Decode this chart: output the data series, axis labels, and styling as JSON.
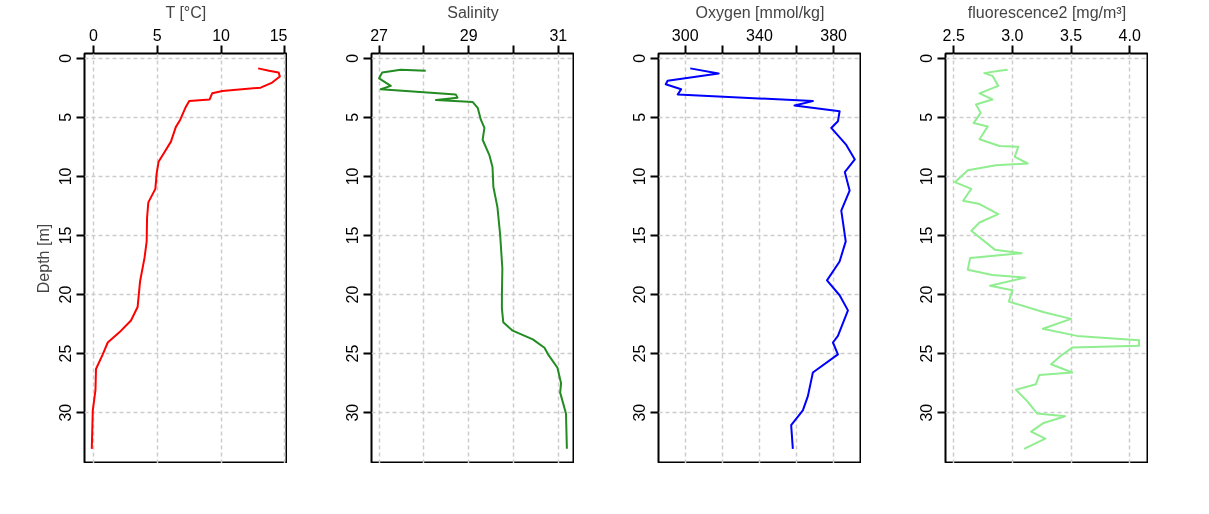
{
  "chart_data": [
    {
      "type": "line",
      "title": "T [°C]",
      "ylabel": "Depth [m]",
      "grid": true,
      "xlim": [
        -0.7,
        15.2
      ],
      "ylim": [
        34.3,
        -0.4
      ],
      "xticks": [
        0,
        5,
        10,
        15
      ],
      "yticks": [
        0,
        5,
        10,
        15,
        20,
        25,
        30
      ],
      "series": [
        {
          "color": "#ff0000",
          "x": [
            12.9,
            13.75,
            14.5,
            14.6,
            14.0,
            13.1,
            10.1,
            9.3,
            9.1,
            7.5,
            7.2,
            6.8,
            6.45,
            6.07,
            5.5,
            5.1,
            4.95,
            4.85,
            4.3,
            4.2,
            4.17,
            4.0,
            3.65,
            3.46,
            2.94,
            2.03,
            1.12,
            0.73,
            0.2,
            0.16,
            -0.05,
            -0.13
          ],
          "values": [
            0.86,
            1.06,
            1.2,
            1.54,
            2.06,
            2.49,
            2.77,
            2.97,
            3.49,
            3.63,
            4.2,
            5.2,
            5.83,
            7.06,
            8.06,
            8.77,
            9.77,
            11.06,
            12.2,
            13.5,
            15.5,
            16.9,
            18.9,
            21.06,
            22.2,
            23.2,
            24.06,
            25.06,
            26.3,
            28.06,
            29.8,
            33.06
          ]
        }
      ]
    },
    {
      "type": "line",
      "title": "Salinity",
      "grid": true,
      "xlim": [
        26.83,
        31.36
      ],
      "ylim": [
        34.3,
        -0.4
      ],
      "xticks": [
        27,
        {
          "value": 28,
          "label": null
        },
        29,
        {
          "value": 30,
          "label": null
        },
        31
      ],
      "yticks": [
        0,
        5,
        10,
        15,
        20,
        25,
        30
      ],
      "series": [
        {
          "color": "#228b22",
          "x": [
            28.04,
            27.48,
            27.07,
            27.0,
            27.26,
            27.04,
            28.71,
            28.75,
            28.27,
            29.09,
            29.2,
            29.27,
            29.35,
            29.31,
            29.46,
            29.53,
            29.55,
            29.64,
            29.7,
            29.75,
            29.74,
            29.74,
            29.77,
            29.98,
            30.43,
            30.69,
            30.77,
            30.98,
            31.06,
            31.04,
            31.17,
            31.19
          ],
          "values": [
            1.06,
            0.97,
            1.2,
            1.7,
            2.34,
            2.63,
            3.06,
            3.34,
            3.54,
            3.71,
            4.2,
            5.2,
            5.9,
            6.9,
            8.2,
            9.2,
            10.9,
            12.6,
            14.9,
            17.8,
            20.06,
            21.2,
            22.34,
            23.06,
            23.8,
            24.5,
            25.06,
            26.2,
            27.5,
            28.3,
            30.06,
            33.06
          ]
        }
      ]
    },
    {
      "type": "line",
      "title": "Oxygen [mmol/kg]",
      "grid": true,
      "xlim": [
        285.6,
        395
      ],
      "ylim": [
        34.3,
        -0.4
      ],
      "xticks": [
        300,
        {
          "value": 320,
          "label": null
        },
        340,
        {
          "value": 360,
          "label": null
        },
        380
      ],
      "yticks": [
        0,
        5,
        10,
        15,
        20,
        25,
        30
      ],
      "series": [
        {
          "color": "#0000ff",
          "x": [
            302.7,
            318,
            290.5,
            289.5,
            297.8,
            296,
            368.8,
            358.9,
            383.2,
            382.3,
            378.7,
            386.8,
            391.4,
            386,
            388.6,
            384.1,
            386.5,
            383.2,
            376.4,
            383.2,
            387.7,
            382.3,
            379.6,
            382.3,
            368.8,
            366.1,
            363.4,
            357.1,
            358
          ],
          "values": [
            0.86,
            1.29,
            1.91,
            2.2,
            2.63,
            3.06,
            3.63,
            4.0,
            4.49,
            5.34,
            5.9,
            7.34,
            8.57,
            9.63,
            11.2,
            12.9,
            15.5,
            17.2,
            18.8,
            20.06,
            21.34,
            23.5,
            24.06,
            25.06,
            26.6,
            28.6,
            29.8,
            31.06,
            33.06
          ]
        }
      ]
    },
    {
      "type": "line",
      "title": "fluorescence2 [mg/m³]",
      "grid": true,
      "xlim": [
        2.43,
        4.16
      ],
      "ylim": [
        34.3,
        -0.4
      ],
      "xticks": [
        2.5,
        {
          "value": 3,
          "label": "3.0"
        },
        3.5,
        {
          "value": 4,
          "label": "4.0"
        }
      ],
      "yticks": [
        0,
        5,
        10,
        15,
        20,
        25,
        30
      ],
      "series": [
        {
          "color": "#90ee90",
          "x": [
            2.96,
            2.89,
            2.76,
            2.83,
            2.88,
            2.72,
            2.83,
            2.69,
            2.73,
            2.67,
            2.79,
            2.72,
            2.89,
            3.05,
            3.02,
            3.13,
            2.86,
            2.62,
            2.51,
            2.65,
            2.58,
            2.72,
            2.88,
            2.72,
            2.65,
            2.85,
            3.08,
            2.64,
            2.62,
            2.83,
            3.11,
            2.81,
            3.0,
            2.97,
            3.27,
            3.5,
            3.26,
            3.55,
            4.08,
            4.08,
            3.51,
            3.41,
            3.33,
            3.51,
            3.23,
            3.2,
            3.03,
            3.13,
            3.21,
            3.45,
            3.26,
            3.16,
            3.28,
            3.1
          ],
          "values": [
            0.97,
            1.06,
            1.26,
            1.49,
            2.34,
            2.97,
            3.49,
            3.91,
            4.63,
            5.49,
            5.77,
            6.86,
            7.43,
            7.49,
            8.34,
            8.91,
            9.06,
            9.49,
            10.49,
            11.06,
            12.06,
            12.34,
            13.2,
            13.9,
            14.6,
            16.2,
            16.5,
            16.9,
            17.9,
            18.34,
            18.57,
            19.26,
            19.63,
            20.6,
            21.5,
            22.06,
            22.9,
            23.5,
            23.86,
            24.34,
            24.49,
            25.2,
            25.9,
            26.6,
            26.8,
            27.6,
            28.06,
            29.06,
            30.06,
            30.3,
            30.9,
            31.6,
            32.2,
            33.06
          ]
        }
      ]
    }
  ]
}
